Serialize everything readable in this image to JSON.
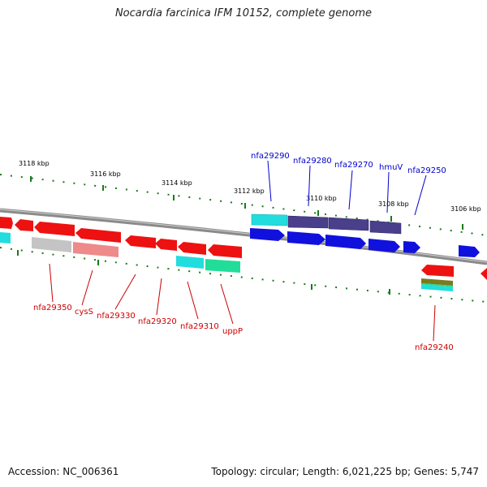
{
  "title": "Nocardia farcinica IFM 10152, complete genome",
  "footer": {
    "accession": "Accession: NC_006361",
    "summary": "Topology: circular; Length: 6,021,225 bp; Genes: 5,747"
  },
  "colors": {
    "backbone": "#8a8a8a",
    "tick": "#1a7a1a",
    "red": "#ee1111",
    "blue": "#1111dd",
    "navy": "#4a3f8a",
    "cyan": "#22dddd",
    "green": "#22dd99",
    "grey": "#c4c4c4",
    "pink": "#ee8a8a",
    "olive": "#7a7a20",
    "label_top": "#0000cc",
    "label_bottom": "#cc0000"
  },
  "kbp_labels": [
    "3118 kbp",
    "3116 kbp",
    "3114 kbp",
    "3112 kbp",
    "3110 kbp",
    "3108 kbp",
    "3106 kbp"
  ],
  "gene_labels_top": [
    "nfa29290",
    "nfa29280",
    "nfa29270",
    "hmuV",
    "nfa29250"
  ],
  "gene_labels_bottom": [
    "nfa29350",
    "cysS",
    "nfa29330",
    "nfa29320",
    "nfa29310",
    "uppP",
    "nfa29240"
  ]
}
